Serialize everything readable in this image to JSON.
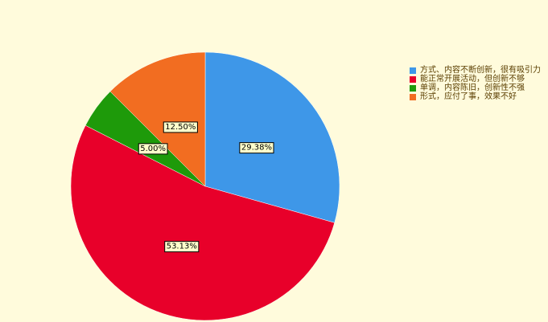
{
  "chart_data": {
    "type": "pie",
    "categories": [
      "方式、内容不断创新，很有吸引力",
      "能正常开展活动，但创新不够",
      "单调，内容陈旧，创新性不强",
      "形式，应付了事，效果不好"
    ],
    "values": [
      29.38,
      53.13,
      5.0,
      12.5
    ],
    "value_labels": [
      "29.38%",
      "53.13%",
      "5.00%",
      "12.50%"
    ],
    "colors": [
      "#3e97e8",
      "#e8002a",
      "#1e9a0a",
      "#f26d21"
    ],
    "legend": "right"
  }
}
